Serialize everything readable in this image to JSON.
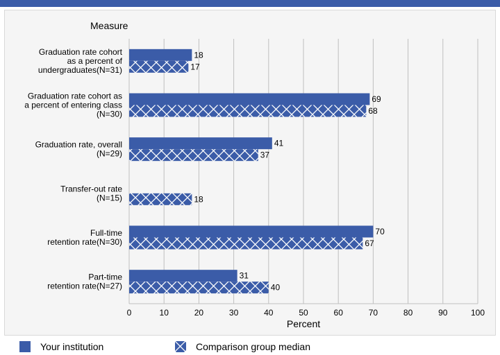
{
  "colors": {
    "bar": "#3B5CA8",
    "panel": "#F5F5F5",
    "grid": "#BFBFBF",
    "topbar": "#3B5CA8"
  },
  "legend": {
    "institution_label": "Your institution",
    "comparison_label": "Comparison group median"
  },
  "chart_data": {
    "type": "bar",
    "orientation": "horizontal",
    "title": "",
    "category_axis_title": "Measure",
    "xlabel": "Percent",
    "xlim": [
      0,
      100
    ],
    "xticks": [
      0,
      10,
      20,
      30,
      40,
      50,
      60,
      70,
      80,
      90,
      100
    ],
    "grid": true,
    "legend_position": "bottom",
    "categories": [
      {
        "label_lines": [
          "Graduation rate cohort",
          "as a percent of",
          "undergraduates(N=31)"
        ]
      },
      {
        "label_lines": [
          "Graduation rate cohort as",
          "a percent of entering class",
          "(N=30)"
        ]
      },
      {
        "label_lines": [
          "Graduation rate, overall",
          "(N=29)"
        ]
      },
      {
        "label_lines": [
          "Transfer-out rate",
          "(N=15)"
        ]
      },
      {
        "label_lines": [
          "Full-time",
          "retention rate(N=30)"
        ]
      },
      {
        "label_lines": [
          "Part-time",
          "retention rate(N=27)"
        ]
      }
    ],
    "series": [
      {
        "name": "Your institution",
        "pattern": "solid",
        "values": [
          18,
          69,
          41,
          null,
          70,
          31
        ]
      },
      {
        "name": "Comparison group median",
        "pattern": "crosshatch",
        "values": [
          17,
          68,
          37,
          18,
          67,
          40
        ]
      }
    ]
  }
}
